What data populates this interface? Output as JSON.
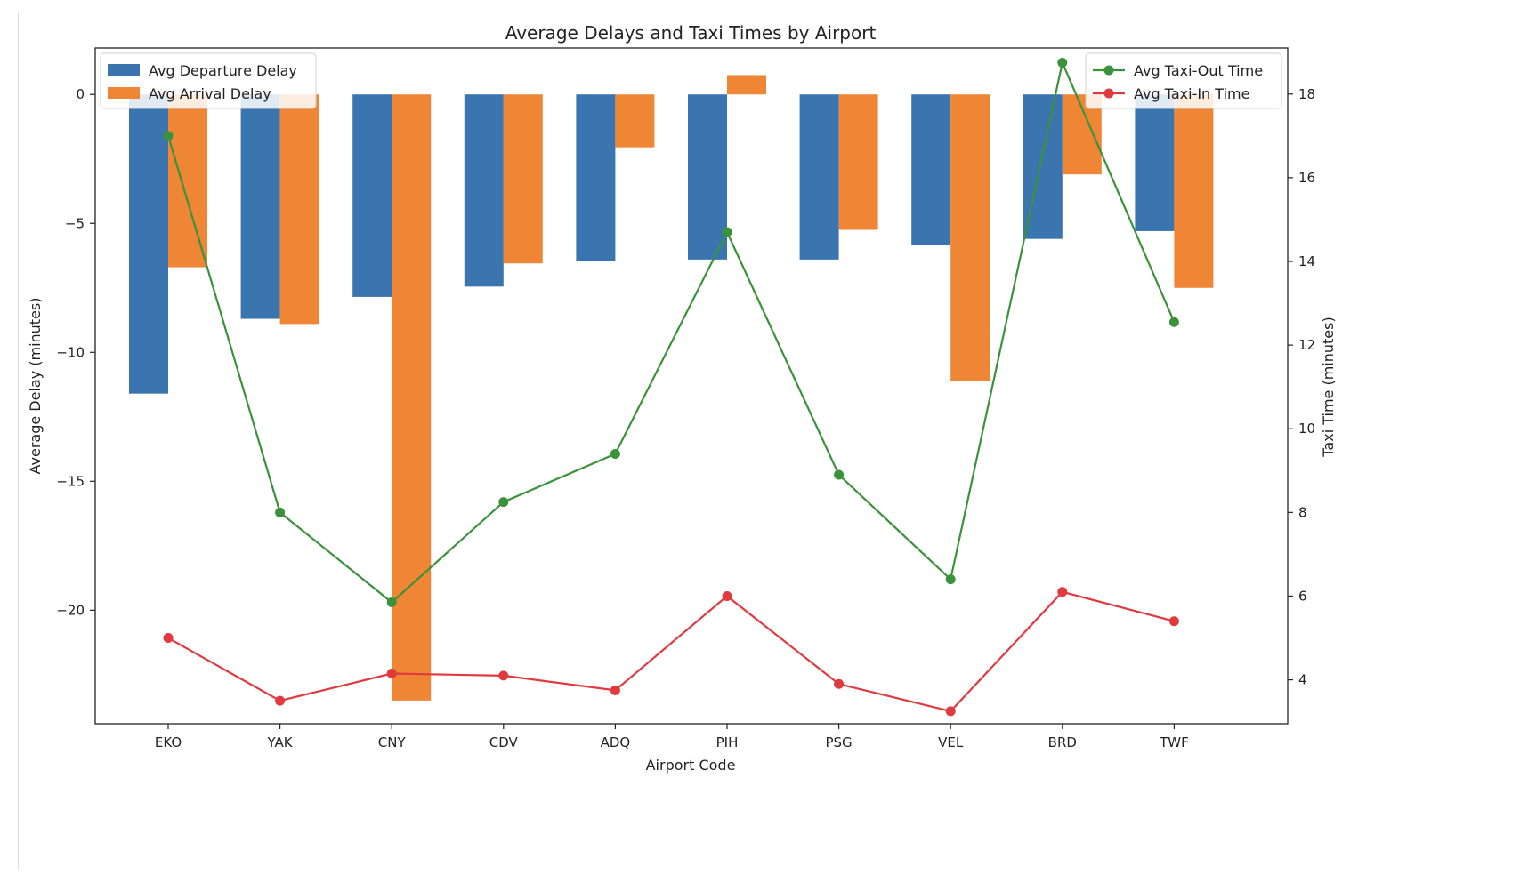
{
  "chart_data": {
    "type": "bar",
    "title": "Average Delays and Taxi Times by Airport",
    "xlabel": "Airport Code",
    "ylabel": "Average Delay (minutes)",
    "y2label": "Taxi Time (minutes)",
    "categories": [
      "EKO",
      "YAK",
      "CNY",
      "CDV",
      "ADQ",
      "PIH",
      "PSG",
      "VEL",
      "BRD",
      "TWF"
    ],
    "ylim": [
      -24.4,
      1.8
    ],
    "y2lim": [
      2.95,
      19.1
    ],
    "yticks": [
      0,
      -5,
      -10,
      -15,
      -20
    ],
    "y2ticks": [
      4,
      6,
      8,
      10,
      12,
      14,
      16,
      18
    ],
    "grid": false,
    "series": [
      {
        "name": "Avg Departure Delay",
        "kind": "bar",
        "axis": "left",
        "color": "#3a75af",
        "values": [
          -11.6,
          -8.7,
          -7.85,
          -7.45,
          -6.45,
          -6.4,
          -6.4,
          -5.85,
          -5.6,
          -5.3
        ]
      },
      {
        "name": "Avg Arrival Delay",
        "kind": "bar",
        "axis": "left",
        "color": "#ef8636",
        "values": [
          -6.7,
          -8.9,
          -23.5,
          -6.55,
          -2.05,
          0.75,
          -5.25,
          -11.1,
          -3.1,
          -7.5
        ]
      },
      {
        "name": "Avg Taxi-Out Time",
        "kind": "line",
        "axis": "right",
        "color": "#3a923a",
        "values": [
          17.0,
          8.0,
          5.85,
          8.25,
          9.4,
          14.7,
          8.9,
          6.4,
          18.75,
          12.55
        ]
      },
      {
        "name": "Avg Taxi-In Time",
        "kind": "line",
        "axis": "right",
        "color": "#e0393e",
        "values": [
          5.0,
          3.5,
          4.15,
          4.1,
          3.75,
          6.0,
          3.9,
          3.25,
          6.1,
          5.4
        ]
      }
    ],
    "legend_left": "upper-left",
    "legend_right": "upper-right"
  }
}
